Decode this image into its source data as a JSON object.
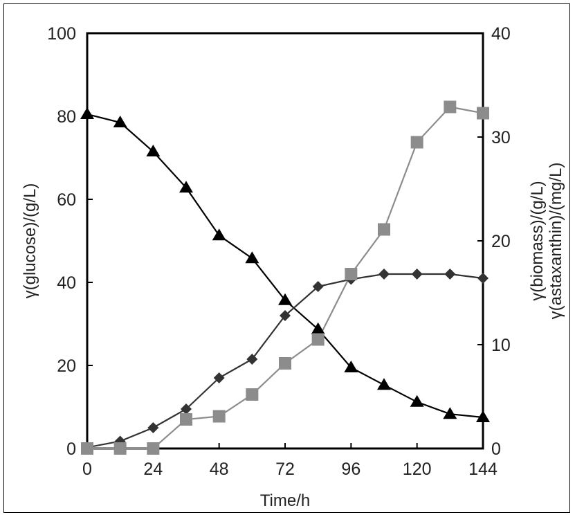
{
  "chart_data": {
    "type": "line",
    "xlabel": "Time/h",
    "ylabel_left": "γ(glucose)/(g/L)",
    "ylabel_right_line1": "γ(biomass)/(g/L)",
    "ylabel_right_line2": "γ(astaxanthin)/(mg/L)",
    "xlim": [
      0,
      144
    ],
    "ylim_left": [
      0,
      100
    ],
    "ylim_right": [
      0,
      40
    ],
    "x_ticks": [
      0,
      24,
      48,
      72,
      96,
      120,
      144
    ],
    "y_left_ticks": [
      0,
      20,
      40,
      60,
      80,
      100
    ],
    "y_right_ticks": [
      0,
      10,
      20,
      30,
      40
    ],
    "grid": false,
    "colors": {
      "glucose": "#000000",
      "biomass": "#333333",
      "astaxanthin": "#8c8c8c"
    },
    "series": [
      {
        "axis": "left",
        "marker": "triangle",
        "x": [
          0,
          12,
          24,
          36,
          48,
          60,
          72,
          84,
          96,
          108,
          120,
          132,
          144
        ],
        "y": [
          80.5,
          78.5,
          71.5,
          62.8,
          51.3,
          45.8,
          35.7,
          28.7,
          19.5,
          15.3,
          11.2,
          8.3,
          7.5
        ]
      },
      {
        "axis": "right",
        "marker": "diamond",
        "x": [
          0,
          12,
          24,
          36,
          48,
          60,
          72,
          84,
          96,
          108,
          120,
          132,
          144
        ],
        "y": [
          0.1,
          0.7,
          2.0,
          3.8,
          6.8,
          8.6,
          12.8,
          15.6,
          16.3,
          16.8,
          16.8,
          16.8,
          16.4
        ]
      },
      {
        "axis": "right",
        "marker": "square",
        "x": [
          0,
          12,
          24,
          36,
          48,
          60,
          72,
          84,
          96,
          108,
          120,
          132,
          144
        ],
        "y": [
          0.0,
          0.0,
          0.0,
          2.8,
          3.1,
          5.2,
          8.2,
          10.5,
          16.8,
          21.1,
          29.5,
          32.9,
          32.3
        ]
      }
    ]
  }
}
